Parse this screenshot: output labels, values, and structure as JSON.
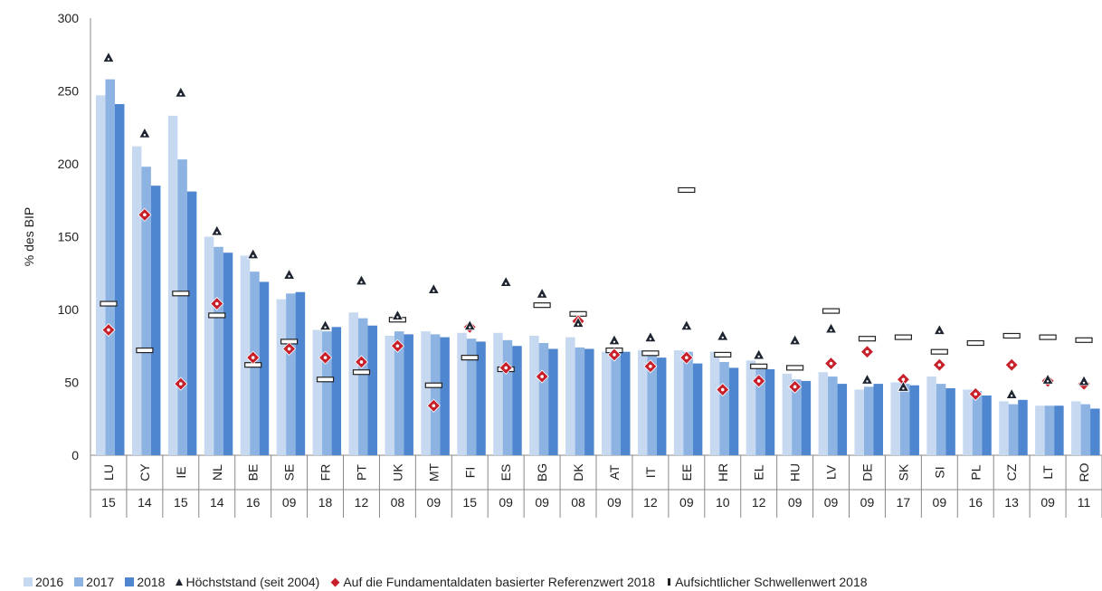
{
  "chart_data": {
    "type": "bar",
    "ylabel": "% des BIP",
    "ylim": [
      0,
      300
    ],
    "yticks": [
      0,
      50,
      100,
      150,
      200,
      250,
      300
    ],
    "grid": false,
    "legend_position": "bottom",
    "categories": [
      "LU",
      "CY",
      "IE",
      "NL",
      "BE",
      "SE",
      "FR",
      "PT",
      "UK",
      "MT",
      "FI",
      "ES",
      "BG",
      "DK",
      "AT",
      "IT",
      "EE",
      "HR",
      "EL",
      "HU",
      "LV",
      "DE",
      "SK",
      "SI",
      "PL",
      "CZ",
      "LT",
      "RO"
    ],
    "year_labels": [
      "15",
      "14",
      "15",
      "14",
      "16",
      "09",
      "18",
      "12",
      "08",
      "09",
      "15",
      "09",
      "09",
      "08",
      "09",
      "12",
      "09",
      "10",
      "12",
      "09",
      "09",
      "09",
      "17",
      "09",
      "16",
      "13",
      "09",
      "11"
    ],
    "series": [
      {
        "name": "2016",
        "color": "#c6d9f1",
        "values": [
          247,
          212,
          233,
          150,
          137,
          107,
          86,
          98,
          82,
          85,
          84,
          84,
          82,
          81,
          71,
          72,
          72,
          71,
          65,
          56,
          57,
          45,
          50,
          54,
          45,
          37,
          34,
          37
        ]
      },
      {
        "name": "2017",
        "color": "#8db3e2",
        "values": [
          258,
          198,
          203,
          143,
          126,
          111,
          85,
          94,
          85,
          83,
          80,
          79,
          77,
          74,
          72,
          69,
          71,
          64,
          62,
          52,
          54,
          47,
          49,
          49,
          44,
          35,
          34,
          35
        ]
      },
      {
        "name": "2018",
        "color": "#4f86d0",
        "values": [
          241,
          185,
          181,
          139,
          119,
          112,
          88,
          89,
          83,
          81,
          78,
          75,
          73,
          73,
          71,
          67,
          63,
          60,
          59,
          51,
          49,
          49,
          48,
          46,
          41,
          38,
          34,
          32
        ]
      }
    ],
    "markers": [
      {
        "name": "Höchststand (seit 2004)",
        "symbol": "triangle",
        "color": "#1e2430",
        "values": [
          273,
          221,
          249,
          154,
          138,
          124,
          89,
          120,
          96,
          114,
          89,
          119,
          111,
          91,
          79,
          81,
          89,
          82,
          69,
          79,
          87,
          52,
          47,
          86,
          null,
          42,
          52,
          51
        ]
      },
      {
        "name": "Auf die Fundamentaldaten basierter Referenzwert 2018",
        "symbol": "diamond",
        "color": "#c8202a",
        "values": [
          86,
          165,
          49,
          104,
          67,
          73,
          67,
          64,
          75,
          34,
          88,
          60,
          54,
          92,
          69,
          61,
          67,
          45,
          51,
          47,
          63,
          71,
          52,
          62,
          42,
          62,
          51,
          49
        ]
      },
      {
        "name": "Aufsichtlicher Schwellenwert 2018",
        "symbol": "dash",
        "color": "#222222",
        "values": [
          104,
          72,
          111,
          96,
          62,
          78,
          52,
          57,
          93,
          48,
          67,
          59,
          103,
          97,
          72,
          70,
          182,
          69,
          61,
          60,
          99,
          80,
          81,
          71,
          77,
          82,
          81,
          79
        ]
      }
    ]
  }
}
